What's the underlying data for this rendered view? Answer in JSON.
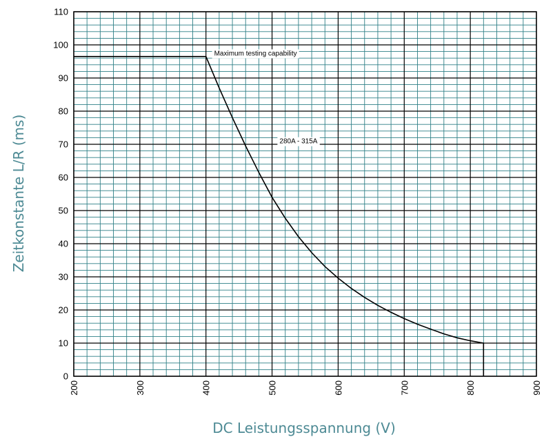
{
  "chart_data": {
    "type": "line",
    "title": "",
    "xlabel": "DC Leistungsspannung (V)",
    "ylabel": "Zeitkonstante L/R (ms)",
    "xlim": [
      200,
      900
    ],
    "ylim": [
      0,
      110
    ],
    "x_ticks": [
      200,
      300,
      400,
      500,
      600,
      700,
      800,
      900
    ],
    "y_ticks": [
      0,
      10,
      20,
      30,
      40,
      50,
      60,
      70,
      80,
      90,
      100,
      110
    ],
    "grid": true,
    "colors": {
      "major_grid": "#000000",
      "minor_grid": "#2e7f86",
      "curve": "#000000",
      "axis_label": "#4d8a94"
    },
    "series": [
      {
        "x": [
          200,
          400,
          420,
          440,
          460,
          480,
          500,
          520,
          540,
          560,
          580,
          600,
          620,
          640,
          660,
          680,
          700,
          720,
          740,
          760,
          780,
          800,
          820,
          820
        ],
        "y": [
          96.5,
          96.5,
          87.0,
          78.0,
          69.5,
          61.5,
          54.0,
          47.7,
          42.1,
          37.3,
          33.1,
          29.6,
          26.5,
          23.8,
          21.4,
          19.3,
          17.4,
          15.7,
          14.2,
          12.8,
          11.6,
          10.7,
          10,
          0
        ]
      }
    ],
    "annotations": [
      {
        "text": "Maximum testing capability",
        "x": 475,
        "y": 97.5
      },
      {
        "text": "280A - 315A",
        "x": 540,
        "y": 71
      }
    ]
  }
}
